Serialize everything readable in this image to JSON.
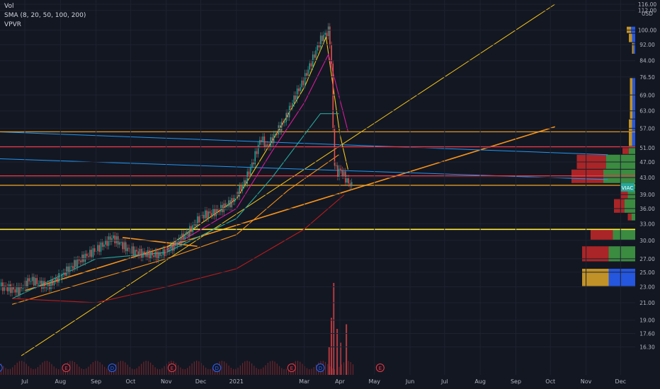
{
  "indicators": {
    "vol": "Vol",
    "sma": "SMA (8, 20, 50, 100, 200)",
    "vpvr": "VPVR"
  },
  "currency": "USD",
  "chart_data": {
    "type": "candlestick",
    "symbol": "VIAC",
    "y_scale": "log",
    "ylim": [
      14.7,
      116
    ],
    "y_ticks": [
      "16.30",
      "17.60",
      "19.00",
      "21.00",
      "23.00",
      "25.00",
      "27.00",
      "30.00",
      "33.00",
      "36.00",
      "39.00",
      "43.00",
      "47.00",
      "51.00",
      "57.00",
      "63.00",
      "69.00",
      "76.50",
      "84.00",
      "92.00",
      "100.00",
      "112.00",
      "116.00"
    ],
    "x_labels": [
      {
        "label": "Jul",
        "date": "2020-07-01"
      },
      {
        "label": "Aug",
        "date": "2020-08-01"
      },
      {
        "label": "Sep",
        "date": "2020-09-01"
      },
      {
        "label": "Oct",
        "date": "2020-10-01"
      },
      {
        "label": "Nov",
        "date": "2020-11-01"
      },
      {
        "label": "Dec",
        "date": "2020-12-01"
      },
      {
        "label": "2021",
        "date": "2021-01-01"
      },
      {
        "label": "Mar",
        "date": "2021-03-01"
      },
      {
        "label": "Apr",
        "date": "2021-04-01"
      },
      {
        "label": "May",
        "date": "2021-05-01"
      },
      {
        "label": "Jun",
        "date": "2021-06-01"
      },
      {
        "label": "Jul",
        "date": "2021-07-01"
      },
      {
        "label": "Aug",
        "date": "2021-08-01"
      },
      {
        "label": "Sep",
        "date": "2021-09-01"
      },
      {
        "label": "Oct",
        "date": "2021-10-01"
      },
      {
        "label": "Nov",
        "date": "2021-11-01"
      },
      {
        "label": "Dec",
        "date": "2021-12-01"
      }
    ],
    "price_path": [
      [
        "2020-06-10",
        23
      ],
      [
        "2020-06-25",
        22.5
      ],
      [
        "2020-07-05",
        24
      ],
      [
        "2020-07-20",
        23
      ],
      [
        "2020-08-01",
        24.5
      ],
      [
        "2020-08-15",
        26.5
      ],
      [
        "2020-09-01",
        28.5
      ],
      [
        "2020-09-15",
        30.5
      ],
      [
        "2020-09-28",
        28.5
      ],
      [
        "2020-10-10",
        27.8
      ],
      [
        "2020-10-25",
        27.5
      ],
      [
        "2020-11-05",
        28.8
      ],
      [
        "2020-11-20",
        31.5
      ],
      [
        "2020-12-01",
        34.5
      ],
      [
        "2020-12-15",
        35.5
      ],
      [
        "2020-12-28",
        37.5
      ],
      [
        "2021-01-08",
        42
      ],
      [
        "2021-01-15",
        47
      ],
      [
        "2021-01-22",
        54
      ],
      [
        "2021-01-27",
        51
      ],
      [
        "2021-02-05",
        56
      ],
      [
        "2021-02-12",
        60
      ],
      [
        "2021-02-20",
        68
      ],
      [
        "2021-02-28",
        75
      ],
      [
        "2021-03-08",
        85
      ],
      [
        "2021-03-15",
        95
      ],
      [
        "2021-03-22",
        100
      ],
      [
        "2021-03-24",
        85
      ],
      [
        "2021-03-26",
        48
      ],
      [
        "2021-03-29",
        44
      ],
      [
        "2021-04-01",
        45
      ],
      [
        "2021-04-07",
        42
      ],
      [
        "2021-04-12",
        40.68
      ]
    ],
    "sma_lines": [
      {
        "period": 8,
        "color": "#f5c518",
        "points": [
          [
            "2020-11-01",
            28.8
          ],
          [
            "2021-01-01",
            38
          ],
          [
            "2021-02-01",
            53
          ],
          [
            "2021-03-01",
            72
          ],
          [
            "2021-03-20",
            96
          ],
          [
            "2021-04-01",
            55
          ],
          [
            "2021-04-08",
            45
          ]
        ]
      },
      {
        "period": 20,
        "color": "#d81b9b",
        "points": [
          [
            "2020-11-01",
            28.4
          ],
          [
            "2021-01-01",
            36
          ],
          [
            "2021-02-01",
            50
          ],
          [
            "2021-03-01",
            66
          ],
          [
            "2021-03-22",
            87
          ],
          [
            "2021-04-08",
            56
          ]
        ]
      },
      {
        "period": 50,
        "color": "#26a69a",
        "points": [
          [
            "2020-06-20",
            21.5
          ],
          [
            "2020-09-01",
            27
          ],
          [
            "2020-11-01",
            28
          ],
          [
            "2021-01-01",
            34
          ],
          [
            "2021-02-01",
            43
          ],
          [
            "2021-03-15",
            62
          ],
          [
            "2021-03-31",
            62
          ]
        ]
      },
      {
        "period": 100,
        "color": "#f7931a",
        "points": [
          [
            "2020-06-20",
            20.8
          ],
          [
            "2020-09-01",
            24
          ],
          [
            "2020-11-01",
            27
          ],
          [
            "2021-01-01",
            31
          ],
          [
            "2021-02-15",
            40
          ],
          [
            "2021-03-31",
            49
          ]
        ]
      },
      {
        "period": 200,
        "color": "#b71c1c",
        "points": [
          [
            "2020-06-20",
            21.5
          ],
          [
            "2020-09-01",
            21
          ],
          [
            "2020-11-01",
            23
          ],
          [
            "2021-01-01",
            25.5
          ],
          [
            "2021-03-01",
            32
          ],
          [
            "2021-04-05",
            39
          ]
        ]
      }
    ],
    "horizontal_levels": [
      {
        "value": 55.88,
        "label": "55.88",
        "color": "#f5a623"
      },
      {
        "value": 51.29,
        "label": "51.29",
        "color": "#f23645"
      },
      {
        "value": 43.42,
        "label": "43.42",
        "color": "#f23645"
      },
      {
        "value": 41.13,
        "label": "41.13",
        "color": "#f5a623"
      },
      {
        "value": 31.95,
        "label": "31.95",
        "color": "#ffeb3b"
      }
    ],
    "trend_lines": [
      {
        "name": "yellow-ascending",
        "color": "#f5c518",
        "start": [
          "2020-06-28",
          15.5
        ],
        "end": [
          "2021-10-05",
          116
        ]
      },
      {
        "name": "orange-ascending",
        "color": "#f7931a",
        "start": [
          "2020-07-01",
          22.5
        ],
        "end": [
          "2021-10-05",
          57.5
        ]
      },
      {
        "name": "blue-descending-1",
        "color": "#2196f3",
        "start": [
          "2020-05-28",
          56
        ],
        "end": [
          "2021-11-20",
          49
        ]
      },
      {
        "name": "blue-descending-2",
        "color": "#2196f3",
        "start": [
          "2020-05-28",
          48
        ],
        "end": [
          "2021-11-20",
          42.5
        ]
      },
      {
        "name": "orange-pennant",
        "color": "#f7931a",
        "start": [
          "2020-09-24",
          30.5
        ],
        "end": [
          "2020-11-28",
          29
        ]
      }
    ],
    "last_price": {
      "symbol": "VIAC",
      "value": 40.68,
      "label": "40.68"
    },
    "volume_spikes": [
      {
        "date": "2021-03-22",
        "height": 0.3
      },
      {
        "date": "2021-03-24",
        "height": 0.62
      },
      {
        "date": "2021-03-26",
        "height": 1.0
      },
      {
        "date": "2021-03-29",
        "height": 0.5
      },
      {
        "date": "2021-04-01",
        "height": 0.35
      },
      {
        "date": "2021-04-06",
        "height": 0.55
      }
    ],
    "vpvr": [
      {
        "price": [
          98,
          102
        ],
        "share": 0.08,
        "colors": [
          "#e0a828",
          "#2962ff"
        ]
      },
      {
        "price": [
          93,
          98
        ],
        "share": 0.06,
        "colors": [
          "#e0a828",
          "#2962ff"
        ]
      },
      {
        "price": [
          87,
          93
        ],
        "share": 0.03,
        "colors": [
          "#e0a828",
          "#2962ff"
        ]
      },
      {
        "price": [
          60,
          76
        ],
        "share": 0.05,
        "colors": [
          "#e0a828",
          "#2962ff"
        ]
      },
      {
        "price": [
          55.9,
          60
        ],
        "share": 0.06,
        "colors": [
          "#e0a828",
          "#2962ff"
        ]
      },
      {
        "price": [
          51.3,
          55.9
        ],
        "share": 0.06,
        "colors": [
          "#e0a828",
          "#2962ff"
        ]
      },
      {
        "price": [
          49,
          51.3
        ],
        "share": 0.12,
        "colors": [
          "#c62828",
          "#43a047"
        ]
      },
      {
        "price": [
          45,
          49
        ],
        "share": 0.55,
        "colors": [
          "#c62828",
          "#43a047"
        ]
      },
      {
        "price": [
          41.5,
          45
        ],
        "share": 0.6,
        "colors": [
          "#c62828",
          "#43a047"
        ]
      },
      {
        "price": [
          40,
          41.5
        ],
        "share": 0.1,
        "colors": [
          "#c62828",
          "#43a047"
        ]
      },
      {
        "price": [
          38,
          40
        ],
        "share": 0.14,
        "colors": [
          "#c62828",
          "#43a047"
        ]
      },
      {
        "price": [
          35,
          38
        ],
        "share": 0.2,
        "colors": [
          "#c62828",
          "#43a047"
        ]
      },
      {
        "price": [
          33.5,
          35
        ],
        "share": 0.07,
        "colors": [
          "#c62828",
          "#43a047"
        ]
      },
      {
        "price": [
          30,
          32
        ],
        "share": 0.42,
        "colors": [
          "#c62828",
          "#43a047"
        ]
      },
      {
        "price": [
          26.5,
          29
        ],
        "share": 0.5,
        "colors": [
          "#c62828",
          "#43a047"
        ]
      },
      {
        "price": [
          23,
          25.5
        ],
        "share": 0.5,
        "colors": [
          "#e0a828",
          "#2962ff"
        ]
      }
    ],
    "event_markers": [
      {
        "letter": "D",
        "date": "2020-06-08",
        "color": "#2962ff"
      },
      {
        "letter": "E",
        "date": "2020-08-06",
        "color": "#f23645"
      },
      {
        "letter": "D",
        "date": "2020-09-15",
        "color": "#2962ff"
      },
      {
        "letter": "E",
        "date": "2020-11-06",
        "color": "#f23645"
      },
      {
        "letter": "D",
        "date": "2020-12-15",
        "color": "#2962ff"
      },
      {
        "letter": "E",
        "date": "2021-02-18",
        "color": "#f23645"
      },
      {
        "letter": "D",
        "date": "2021-03-15",
        "color": "#2962ff"
      },
      {
        "letter": "E",
        "date": "2021-05-06",
        "color": "#f23645"
      }
    ]
  }
}
